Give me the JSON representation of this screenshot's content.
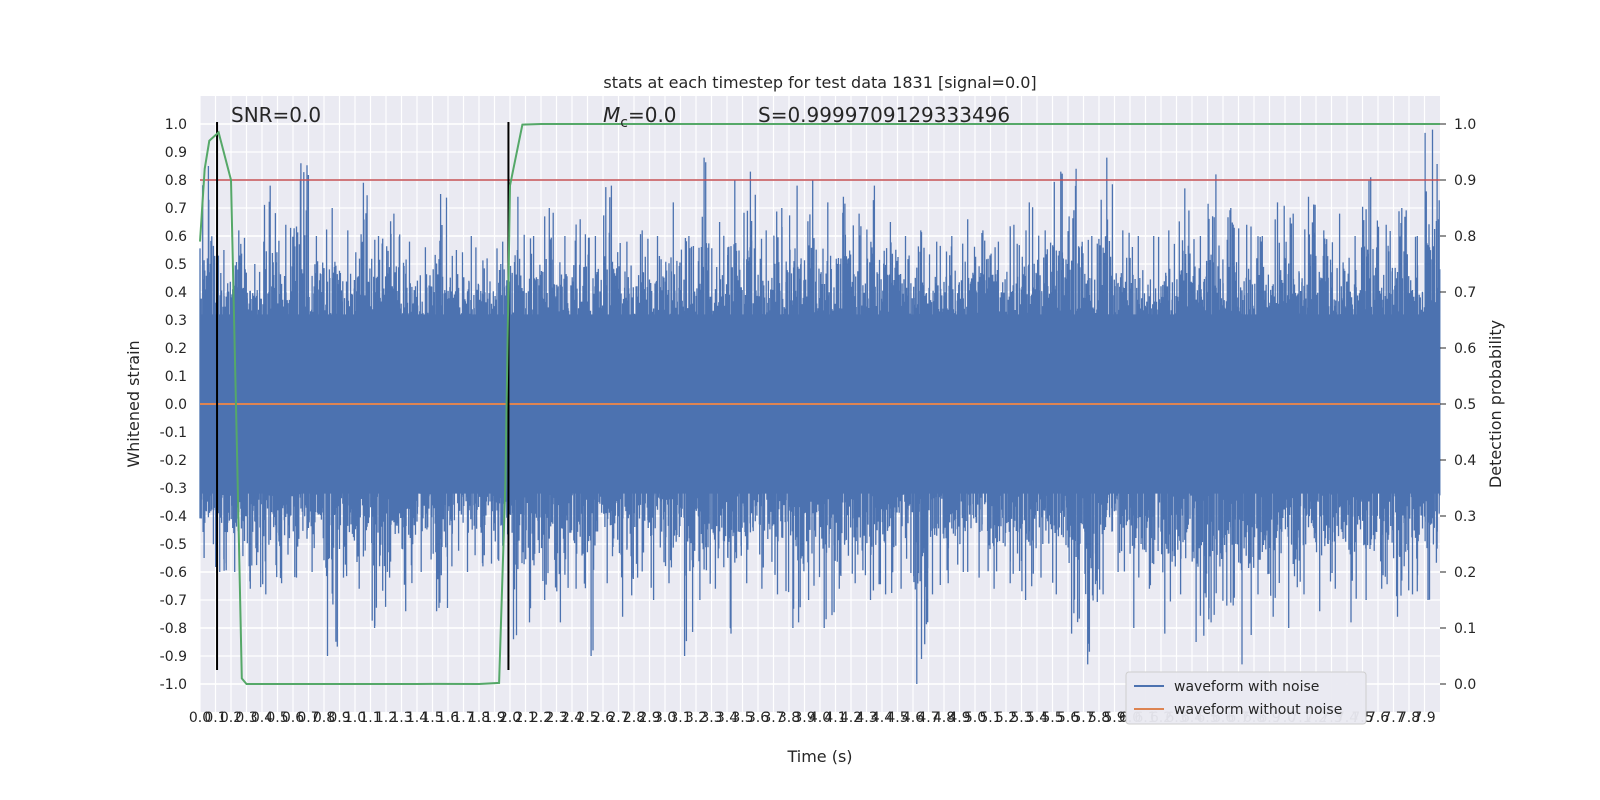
{
  "chart_data": {
    "type": "line",
    "title": "stats at each timestep for test data 1831 [signal=0.0]",
    "xlabel": "Time (s)",
    "ylabel": "Whitened strain",
    "y2label": "Detection probability",
    "xlim": [
      0.0,
      8.0
    ],
    "ylim": [
      -1.1,
      1.1
    ],
    "y2lim": [
      -0.05,
      1.05
    ],
    "x_ticks": [
      "0.0",
      "0.1",
      "0.2",
      "0.3",
      "0.4",
      "0.5",
      "0.6",
      "0.7",
      "0.8",
      "0.9",
      "1.0",
      "1.1",
      "1.2",
      "1.3",
      "1.4",
      "1.5",
      "1.6",
      "1.7",
      "1.8",
      "1.9",
      "2.0",
      "2.1",
      "2.2",
      "2.3",
      "2.4",
      "2.5",
      "2.6",
      "2.7",
      "2.8",
      "2.9",
      "3.0",
      "3.1",
      "3.2",
      "3.3",
      "3.4",
      "3.5",
      "3.6",
      "3.7",
      "3.8",
      "3.9",
      "4.0",
      "4.1",
      "4.2",
      "4.3",
      "4.4",
      "4.5",
      "4.6",
      "4.7",
      "4.8",
      "4.9",
      "5.0",
      "5.1",
      "5.2",
      "5.3",
      "5.4",
      "5.5",
      "5.6",
      "5.7",
      "5.8",
      "5.9",
      "6.0",
      "6.1",
      "6.2",
      "6.3",
      "6.4",
      "6.5",
      "6.6",
      "6.7",
      "6.8",
      "6.9",
      "7.0",
      "7.1",
      "7.2",
      "7.3",
      "7.4",
      "7.5",
      "7.6",
      "7.7",
      "7.8",
      "7.9"
    ],
    "y_ticks": [
      "1.0",
      "0.9",
      "0.8",
      "0.7",
      "0.6",
      "0.5",
      "0.4",
      "0.3",
      "0.2",
      "0.1",
      "0.0",
      "-0.1",
      "-0.2",
      "-0.3",
      "-0.4",
      "-0.5",
      "-0.6",
      "-0.7",
      "-0.8",
      "-0.9",
      "-1.0"
    ],
    "y2_ticks": [
      "1.0",
      "0.9",
      "0.8",
      "0.7",
      "0.6",
      "0.5",
      "0.4",
      "0.3",
      "0.2",
      "0.1",
      "0.0"
    ],
    "grid": true,
    "legend_position": "lower-right",
    "series": [
      {
        "name": "waveform with noise",
        "axis": "left",
        "color": "#4c72b0",
        "envelope_upper": [
          0.85,
          0.55,
          0.62,
          0.5,
          0.78,
          0.64,
          0.86,
          0.6,
          0.7,
          0.62,
          0.79,
          0.6,
          0.68,
          0.58,
          0.56,
          0.75,
          0.55,
          0.6,
          0.52,
          0.58,
          0.74,
          0.6,
          0.7,
          0.6,
          0.66,
          0.6,
          0.78,
          0.58,
          0.62,
          0.6,
          0.72,
          0.6,
          0.88,
          0.65,
          0.8,
          0.83,
          0.62,
          0.7,
          0.78,
          0.8,
          0.72,
          0.74,
          0.68,
          0.78,
          0.65,
          0.6,
          0.62,
          0.58,
          0.6,
          0.66,
          0.62,
          0.58,
          0.64,
          0.72,
          0.62,
          0.83,
          0.84,
          0.6,
          0.88,
          0.62,
          0.6,
          0.6,
          0.62,
          0.77,
          0.6,
          0.82,
          0.7,
          0.64,
          0.6,
          0.72,
          0.68,
          0.74,
          0.62,
          0.68,
          0.6,
          0.81,
          0.64,
          0.7,
          0.6,
          0.98
        ],
        "envelope_lower": [
          -0.55,
          -0.6,
          -0.6,
          -0.66,
          -0.68,
          -0.64,
          -0.62,
          -0.6,
          -0.9,
          -0.62,
          -0.66,
          -0.8,
          -0.62,
          -0.74,
          -0.6,
          -0.74,
          -0.58,
          -0.6,
          -0.58,
          -0.56,
          -0.84,
          -0.78,
          -0.7,
          -0.78,
          -0.66,
          -0.9,
          -0.64,
          -0.76,
          -0.62,
          -0.7,
          -0.64,
          -0.9,
          -0.7,
          -0.66,
          -0.82,
          -0.64,
          -0.66,
          -0.68,
          -0.8,
          -0.7,
          -0.8,
          -0.66,
          -0.64,
          -0.7,
          -0.68,
          -0.66,
          -1.0,
          -0.68,
          -0.64,
          -0.6,
          -0.62,
          -0.66,
          -0.64,
          -0.7,
          -0.62,
          -0.68,
          -0.82,
          -0.93,
          -0.68,
          -0.6,
          -0.8,
          -0.66,
          -0.82,
          -0.68,
          -0.85,
          -0.78,
          -0.72,
          -0.93,
          -0.68,
          -0.76,
          -0.8,
          -0.68,
          -0.74,
          -0.66,
          -0.78,
          -0.7,
          -0.66,
          -0.76,
          -0.68,
          -0.7
        ],
        "band": [
          -0.32,
          0.32
        ]
      },
      {
        "name": "waveform without noise",
        "axis": "left",
        "color": "#dd8452",
        "x": [
          0.0,
          8.0
        ],
        "y": [
          0.0,
          0.0
        ]
      },
      {
        "name": "",
        "axis": "right",
        "color": "#55a868",
        "x": [
          0.0,
          0.03,
          0.06,
          0.12,
          0.2,
          0.24,
          0.27,
          0.3,
          1.0,
          1.4,
          1.5,
          1.8,
          1.93,
          1.97,
          2.0,
          2.08,
          2.2,
          3.0,
          5.0,
          8.0
        ],
        "y": [
          0.79,
          0.92,
          0.97,
          0.985,
          0.9,
          0.4,
          0.01,
          0.0,
          0.0,
          0.0,
          0.0002,
          0.0,
          0.002,
          0.36,
          0.89,
          0.999,
          1.0,
          1.0,
          1.0,
          1.0
        ]
      }
    ],
    "reference_lines": [
      {
        "orientation": "horizontal",
        "axis": "right",
        "value": 0.9,
        "color": "#c44e52"
      },
      {
        "orientation": "vertical",
        "value": 0.11,
        "color": "#000000"
      },
      {
        "orientation": "vertical",
        "value": 1.99,
        "color": "#000000"
      }
    ],
    "annotations": [
      {
        "text_parts": [
          {
            "t": "SNR=0.0"
          }
        ],
        "x": 0.2
      },
      {
        "text_parts": [
          {
            "t": "M"
          },
          {
            "t": "c",
            "sub": true
          },
          {
            "t": "=0.0"
          }
        ],
        "x": 2.6
      },
      {
        "text_parts": [
          {
            "t": "S=0.9999709129333496"
          }
        ],
        "x": 3.6
      }
    ]
  }
}
